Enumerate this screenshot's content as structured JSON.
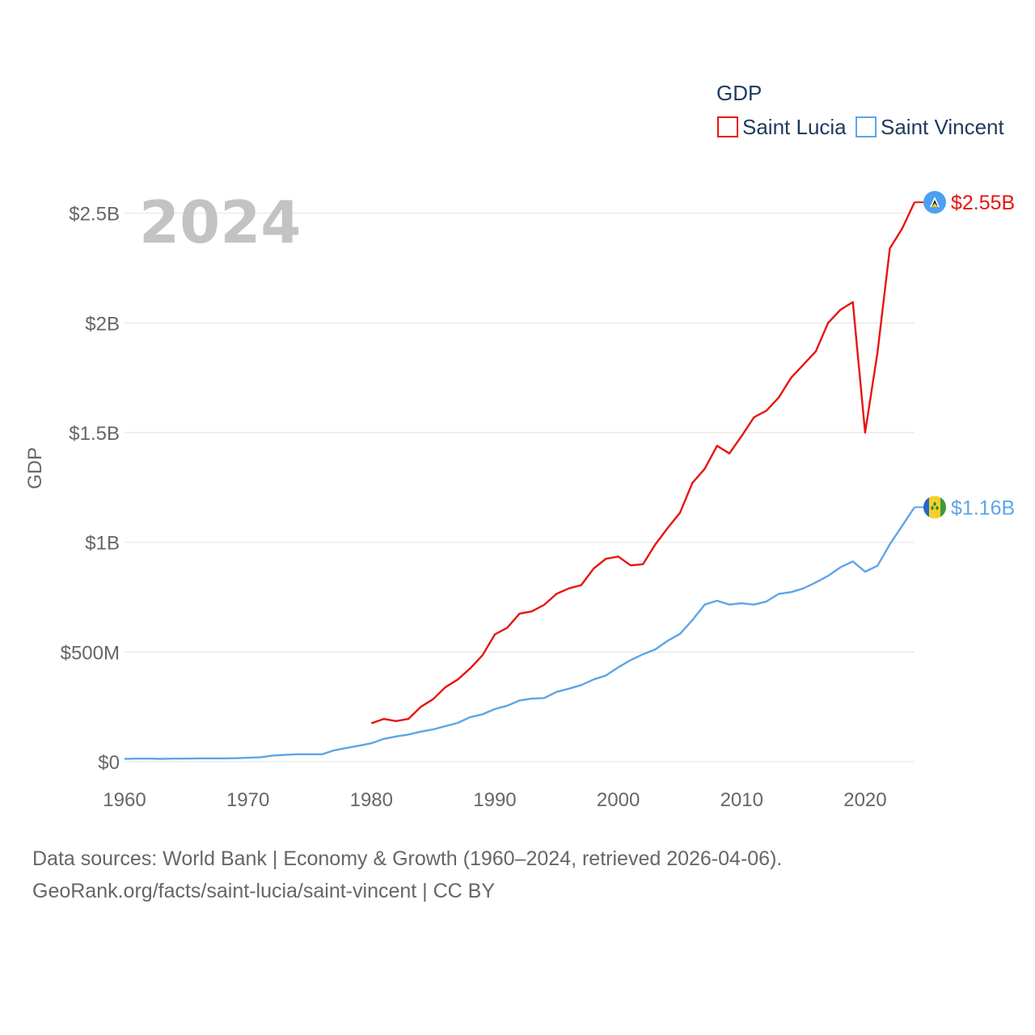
{
  "chart_data": {
    "type": "line",
    "legend_title": "GDP",
    "year_label": "2024",
    "ylabel": "GDP",
    "xlim": [
      1960,
      2024
    ],
    "ylim": [
      0,
      2.7
    ],
    "x_ticks": [
      1960,
      1970,
      1980,
      1990,
      2000,
      2010,
      2020
    ],
    "x_tick_labels": [
      "1960",
      "1970",
      "1980",
      "1990",
      "2000",
      "2010",
      "2020"
    ],
    "y_ticks": [
      0,
      0.5,
      1,
      1.5,
      2,
      2.5
    ],
    "y_tick_labels": [
      "$0",
      "$500M",
      "$1B",
      "$1.5B",
      "$2B",
      "$2.5B"
    ],
    "legend_position": "top-right",
    "series": [
      {
        "name": "Saint Lucia",
        "color": "#e8130f",
        "end_label": "$2.55B",
        "icon": "saint-lucia-flag-icon",
        "x": [
          1980,
          1981,
          1982,
          1983,
          1984,
          1985,
          1986,
          1987,
          1988,
          1989,
          1990,
          1991,
          1992,
          1993,
          1994,
          1995,
          1996,
          1997,
          1998,
          1999,
          2000,
          2001,
          2002,
          2003,
          2004,
          2005,
          2006,
          2007,
          2008,
          2009,
          2010,
          2011,
          2012,
          2013,
          2014,
          2015,
          2016,
          2017,
          2018,
          2019,
          2020,
          2021,
          2022,
          2023,
          2024
        ],
        "values": [
          0.175,
          0.195,
          0.185,
          0.195,
          0.25,
          0.285,
          0.34,
          0.375,
          0.425,
          0.485,
          0.58,
          0.61,
          0.675,
          0.685,
          0.715,
          0.765,
          0.79,
          0.805,
          0.88,
          0.925,
          0.935,
          0.895,
          0.9,
          0.99,
          1.065,
          1.135,
          1.27,
          1.335,
          1.44,
          1.405,
          1.485,
          1.57,
          1.6,
          1.66,
          1.75,
          1.81,
          1.87,
          2.0,
          2.06,
          2.095,
          1.5,
          1.865,
          2.34,
          2.43,
          2.55
        ]
      },
      {
        "name": "Saint Vincent",
        "color": "#5da5e8",
        "end_label": "$1.16B",
        "icon": "saint-vincent-flag-icon",
        "x": [
          1960,
          1961,
          1962,
          1963,
          1964,
          1965,
          1966,
          1967,
          1968,
          1969,
          1970,
          1971,
          1972,
          1973,
          1974,
          1975,
          1976,
          1977,
          1978,
          1979,
          1980,
          1981,
          1982,
          1983,
          1984,
          1985,
          1986,
          1987,
          1988,
          1989,
          1990,
          1991,
          1992,
          1993,
          1994,
          1995,
          1996,
          1997,
          1998,
          1999,
          2000,
          2001,
          2002,
          2003,
          2004,
          2005,
          2006,
          2007,
          2008,
          2009,
          2010,
          2011,
          2012,
          2013,
          2014,
          2015,
          2016,
          2017,
          2018,
          2019,
          2020,
          2021,
          2022,
          2023,
          2024
        ],
        "values": [
          0.013,
          0.014,
          0.014,
          0.013,
          0.014,
          0.014,
          0.015,
          0.015,
          0.015,
          0.016,
          0.018,
          0.02,
          0.028,
          0.031,
          0.034,
          0.034,
          0.034,
          0.052,
          0.063,
          0.073,
          0.084,
          0.104,
          0.115,
          0.124,
          0.137,
          0.147,
          0.162,
          0.177,
          0.203,
          0.216,
          0.24,
          0.255,
          0.279,
          0.288,
          0.29,
          0.318,
          0.333,
          0.349,
          0.375,
          0.393,
          0.43,
          0.463,
          0.49,
          0.512,
          0.551,
          0.583,
          0.645,
          0.716,
          0.734,
          0.716,
          0.722,
          0.716,
          0.73,
          0.765,
          0.773,
          0.79,
          0.817,
          0.847,
          0.886,
          0.913,
          0.866,
          0.893,
          0.991,
          1.075,
          1.16
        ]
      }
    ]
  },
  "source": {
    "line1": "Data sources: World Bank | Economy & Growth (1960–2024, retrieved 2026-04-06).",
    "line2": "GeoRank.org/facts/saint-lucia/saint-vincent | CC BY"
  }
}
